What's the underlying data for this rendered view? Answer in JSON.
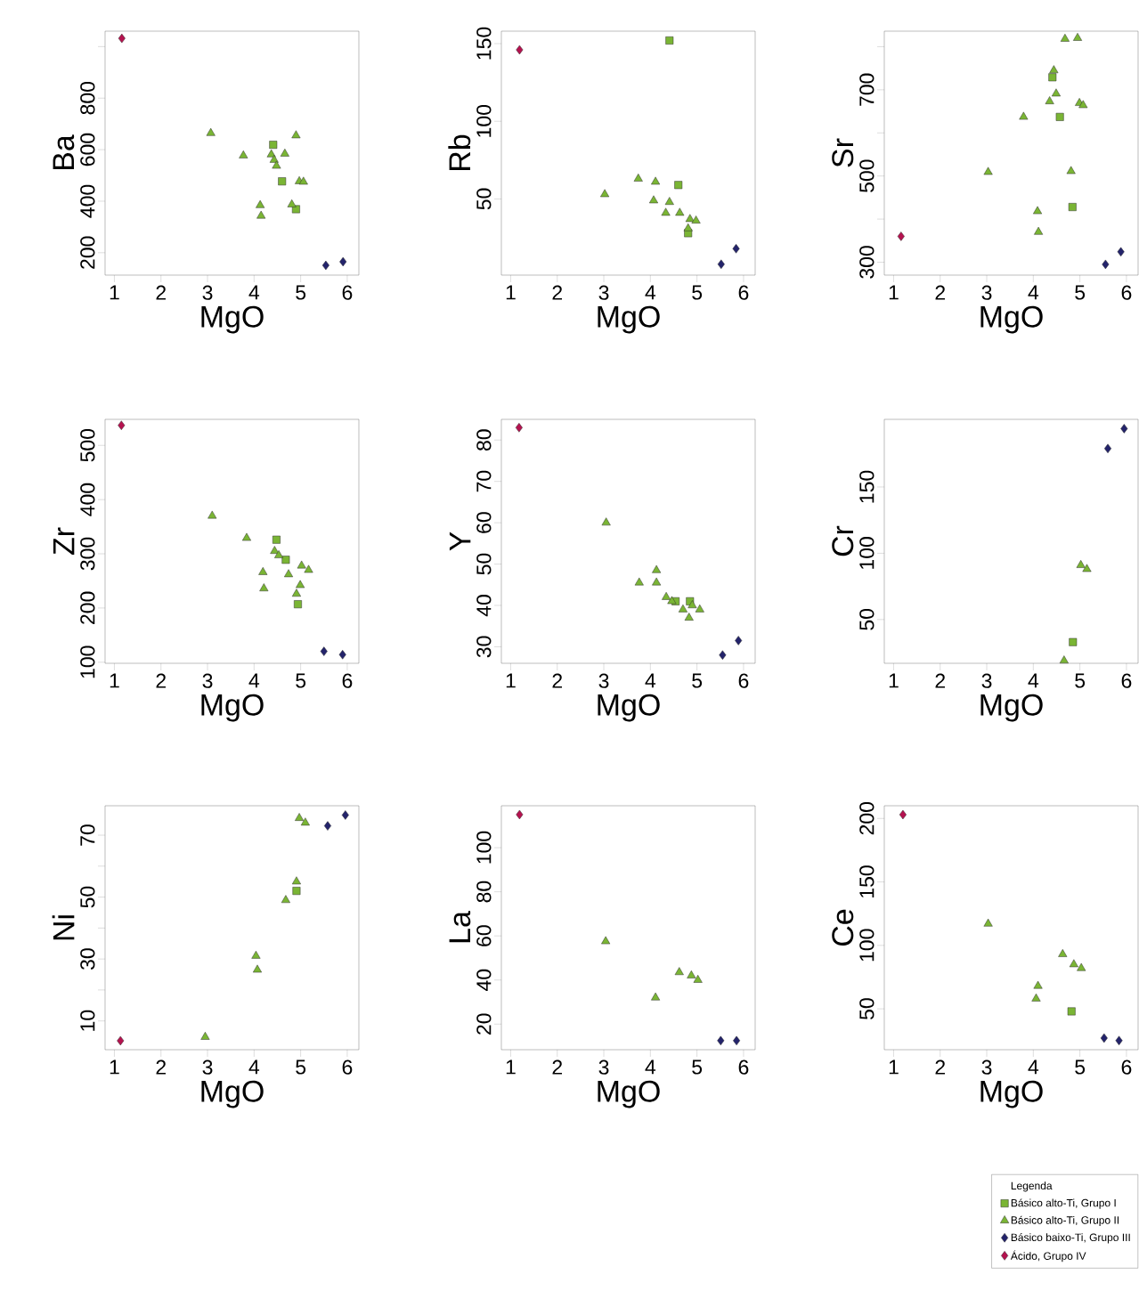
{
  "chart_data": [
    {
      "type": "scatter",
      "xlabel": "MgO",
      "ylabel": "Ba",
      "xlim": [
        0.8,
        6.25
      ],
      "ylim": [
        113,
        1060
      ],
      "xticks": [
        1,
        2,
        3,
        4,
        5,
        6
      ],
      "yticks": [
        200,
        400,
        600,
        800,
        {
          "value": 1000,
          "label": null
        }
      ],
      "series": [
        {
          "color": "#7ab534",
          "marker": "square",
          "x": [
            4.41,
            4.6,
            4.9
          ],
          "values": [
            619,
            477,
            369
          ]
        },
        {
          "color": "#7ab534",
          "marker": "triangle",
          "x": [
            3.07,
            3.77,
            4.37,
            4.43,
            4.48,
            4.66,
            4.9,
            4.13,
            4.15,
            4.81,
            4.97,
            5.06
          ],
          "values": [
            664,
            577,
            581,
            560,
            537,
            584,
            655,
            384,
            343,
            387,
            477,
            475
          ]
        },
        {
          "color": "#23236b",
          "marker": "diamond",
          "x": [
            5.54,
            5.91
          ],
          "values": [
            151,
            165
          ]
        },
        {
          "color": "#b5124f",
          "marker": "diamond",
          "x": [
            1.16
          ],
          "values": [
            1032
          ]
        }
      ]
    },
    {
      "type": "scatter",
      "xlabel": "MgO",
      "ylabel": "Rb",
      "xlim": [
        0.8,
        6.25
      ],
      "ylim": [
        1,
        158
      ],
      "xticks": [
        1,
        2,
        3,
        4,
        5,
        6
      ],
      "yticks": [
        50,
        100,
        150
      ],
      "series": [
        {
          "color": "#7ab534",
          "marker": "square",
          "x": [
            4.41,
            4.6,
            4.81
          ],
          "values": [
            152,
            59,
            28
          ]
        },
        {
          "color": "#7ab534",
          "marker": "triangle",
          "x": [
            3.02,
            3.74,
            4.11,
            4.07,
            4.41,
            4.33,
            4.63,
            4.85,
            4.98,
            4.81
          ],
          "values": [
            53,
            63,
            61,
            49,
            48,
            41,
            41,
            37,
            36,
            31
          ]
        },
        {
          "color": "#23236b",
          "marker": "diamond",
          "x": [
            5.52,
            5.84
          ],
          "values": [
            8,
            18
          ]
        },
        {
          "color": "#b5124f",
          "marker": "diamond",
          "x": [
            1.19
          ],
          "values": [
            146
          ]
        }
      ]
    },
    {
      "type": "scatter",
      "xlabel": "MgO",
      "ylabel": "Sr",
      "xlim": [
        0.8,
        6.25
      ],
      "ylim": [
        270,
        836
      ],
      "xticks": [
        1,
        2,
        3,
        4,
        5,
        6
      ],
      "yticks": [
        300,
        {
          "value": 400,
          "label": null
        },
        500,
        {
          "value": 600,
          "label": null
        },
        700,
        {
          "value": 800,
          "label": null
        }
      ],
      "series": [
        {
          "color": "#7ab534",
          "marker": "square",
          "x": [
            4.41,
            4.57,
            4.84
          ],
          "values": [
            729,
            637,
            428
          ]
        },
        {
          "color": "#7ab534",
          "marker": "triangle",
          "x": [
            3.03,
            3.79,
            4.44,
            4.49,
            4.35,
            4.68,
            4.95,
            4.99,
            5.07,
            4.81,
            4.09,
            4.11
          ],
          "values": [
            509,
            637,
            745,
            691,
            673,
            818,
            820,
            669,
            664,
            511,
            418,
            370
          ]
        },
        {
          "color": "#23236b",
          "marker": "diamond",
          "x": [
            5.55,
            5.88
          ],
          "values": [
            295,
            324
          ]
        },
        {
          "color": "#b5124f",
          "marker": "diamond",
          "x": [
            1.16
          ],
          "values": [
            360
          ]
        }
      ]
    },
    {
      "type": "scatter",
      "xlabel": "MgO",
      "ylabel": "Zr",
      "xlim": [
        0.8,
        6.25
      ],
      "ylim": [
        98,
        548
      ],
      "xticks": [
        1,
        2,
        3,
        4,
        5,
        6
      ],
      "yticks": [
        100,
        200,
        300,
        400,
        500
      ],
      "series": [
        {
          "color": "#7ab534",
          "marker": "square",
          "x": [
            4.48,
            4.68,
            4.94
          ],
          "values": [
            326,
            289,
            207
          ]
        },
        {
          "color": "#7ab534",
          "marker": "triangle",
          "x": [
            3.1,
            3.84,
            4.44,
            4.53,
            4.19,
            4.21,
            4.74,
            5.02,
            5.17,
            4.99,
            4.91
          ],
          "values": [
            370,
            329,
            305,
            297,
            266,
            236,
            262,
            278,
            270,
            242,
            226
          ]
        },
        {
          "color": "#23236b",
          "marker": "diamond",
          "x": [
            5.5,
            5.9
          ],
          "values": [
            120,
            114
          ]
        },
        {
          "color": "#b5124f",
          "marker": "diamond",
          "x": [
            1.15
          ],
          "values": [
            537
          ]
        }
      ]
    },
    {
      "type": "scatter",
      "xlabel": "MgO",
      "ylabel": "Y",
      "xlim": [
        0.8,
        6.25
      ],
      "ylim": [
        26,
        85
      ],
      "xticks": [
        1,
        2,
        3,
        4,
        5,
        6
      ],
      "yticks": [
        30,
        40,
        50,
        60,
        70,
        80
      ],
      "series": [
        {
          "color": "#7ab534",
          "marker": "square",
          "x": [
            4.54,
            4.85
          ],
          "values": [
            41,
            41
          ]
        },
        {
          "color": "#7ab534",
          "marker": "triangle",
          "x": [
            3.05,
            3.76,
            4.13,
            4.13,
            4.34,
            4.46,
            4.7,
            4.83,
            5.06,
            4.9
          ],
          "values": [
            60,
            45.5,
            48.5,
            45.5,
            42,
            41,
            39,
            37,
            39,
            40
          ]
        },
        {
          "color": "#23236b",
          "marker": "diamond",
          "x": [
            5.55,
            5.89
          ],
          "values": [
            28,
            31.5
          ]
        },
        {
          "color": "#b5124f",
          "marker": "diamond",
          "x": [
            1.18
          ],
          "values": [
            83
          ]
        }
      ]
    },
    {
      "type": "scatter",
      "xlabel": "MgO",
      "ylabel": "Cr",
      "xlim": [
        0.8,
        6.25
      ],
      "ylim": [
        17,
        201
      ],
      "xticks": [
        1,
        2,
        3,
        4,
        5,
        6
      ],
      "yticks": [
        50,
        100,
        150
      ],
      "series": [
        {
          "color": "#7ab534",
          "marker": "square",
          "x": [
            4.85
          ],
          "values": [
            33
          ]
        },
        {
          "color": "#7ab534",
          "marker": "triangle",
          "x": [
            4.66,
            5.02,
            5.15
          ],
          "values": [
            19,
            91,
            88
          ]
        },
        {
          "color": "#23236b",
          "marker": "diamond",
          "x": [
            5.6,
            5.95
          ],
          "values": [
            179,
            194
          ]
        }
      ]
    },
    {
      "type": "scatter",
      "xlabel": "MgO",
      "ylabel": "Ni",
      "xlim": [
        0.8,
        6.25
      ],
      "ylim": [
        0.7,
        79.5
      ],
      "xticks": [
        1,
        2,
        3,
        4,
        5,
        6
      ],
      "yticks": [
        10,
        {
          "value": 20,
          "label": null
        },
        30,
        {
          "value": 40,
          "label": null
        },
        50,
        {
          "value": 60,
          "label": null
        },
        70
      ],
      "series": [
        {
          "color": "#7ab534",
          "marker": "square",
          "x": [
            4.91
          ],
          "values": [
            52
          ]
        },
        {
          "color": "#7ab534",
          "marker": "triangle",
          "x": [
            2.95,
            4.04,
            4.07,
            4.68,
            4.91,
            4.97,
            5.1
          ],
          "values": [
            4.8,
            31,
            26.5,
            49,
            55,
            75.5,
            74
          ]
        },
        {
          "color": "#23236b",
          "marker": "diamond",
          "x": [
            5.58,
            5.96
          ],
          "values": [
            73,
            76.5
          ]
        },
        {
          "color": "#b5124f",
          "marker": "diamond",
          "x": [
            1.13
          ],
          "values": [
            3.6
          ]
        }
      ]
    },
    {
      "type": "scatter",
      "xlabel": "MgO",
      "ylabel": "La",
      "xlim": [
        0.8,
        6.25
      ],
      "ylim": [
        8.4,
        119
      ],
      "xticks": [
        1,
        2,
        3,
        4,
        5,
        6
      ],
      "yticks": [
        20,
        40,
        60,
        80,
        100
      ],
      "series": [
        {
          "color": "#7ab534",
          "marker": "triangle",
          "x": [
            3.04,
            4.11,
            4.62,
            4.88,
            5.02
          ],
          "values": [
            57.5,
            32,
            43.5,
            42,
            40
          ]
        },
        {
          "color": "#23236b",
          "marker": "diamond",
          "x": [
            5.51,
            5.85
          ],
          "values": [
            12.5,
            12.5
          ]
        },
        {
          "color": "#b5124f",
          "marker": "diamond",
          "x": [
            1.19
          ],
          "values": [
            115
          ]
        }
      ]
    },
    {
      "type": "scatter",
      "xlabel": "MgO",
      "ylabel": "Ce",
      "xlim": [
        0.8,
        6.25
      ],
      "ylim": [
        17.8,
        210
      ],
      "xticks": [
        1,
        2,
        3,
        4,
        5,
        6
      ],
      "yticks": [
        50,
        100,
        150,
        200
      ],
      "legend": "bottom",
      "legend_title": "Legenda",
      "series": [
        {
          "name": "Básico alto-Ti, Grupo I",
          "color": "#7ab534",
          "marker": "square",
          "x": [
            4.82
          ],
          "values": [
            48
          ]
        },
        {
          "name": "Básico alto-Ti, Grupo II",
          "color": "#7ab534",
          "marker": "triangle",
          "x": [
            3.03,
            4.63,
            4.87,
            5.03,
            4.1,
            4.06
          ],
          "values": [
            117,
            93,
            85,
            82,
            68,
            58
          ]
        },
        {
          "name": "Básico baixo-Ti, Grupo III",
          "color": "#23236b",
          "marker": "diamond",
          "x": [
            5.52,
            5.84
          ],
          "values": [
            27,
            25
          ]
        },
        {
          "name": "Ácido, Grupo IV",
          "color": "#b5124f",
          "marker": "diamond",
          "x": [
            1.2
          ],
          "values": [
            203
          ]
        }
      ]
    }
  ]
}
